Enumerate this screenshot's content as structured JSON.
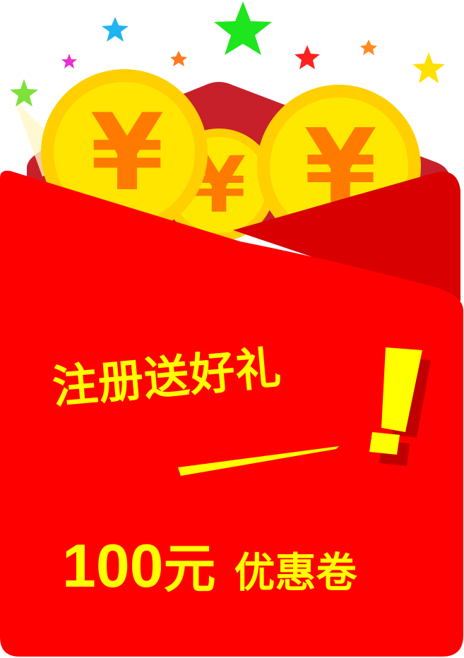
{
  "promo": {
    "title": "注册送好礼",
    "amount_value": "100",
    "amount_unit": "元",
    "coupon_label": "优惠卷",
    "coin_symbol": "¥",
    "exclamation": "!"
  },
  "colors": {
    "envelope_red": "#ff0000",
    "envelope_dark_red": "#d90000",
    "text_yellow": "#ffff00",
    "coin_gold": "#ffd700",
    "coin_symbol_orange": "#ff7a00"
  }
}
